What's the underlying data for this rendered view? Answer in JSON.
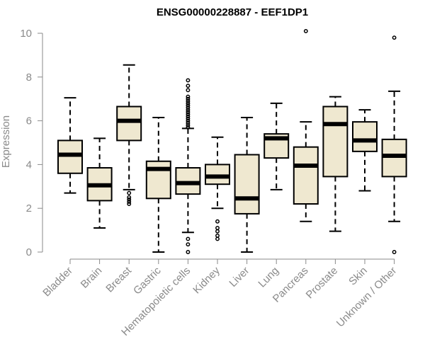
{
  "chart_data": {
    "type": "box",
    "title": "ENSG00000228887 - EEF1DP1",
    "xlabel": "",
    "ylabel": "Expression",
    "ylim": [
      0,
      10
    ],
    "yticks": [
      0,
      2,
      4,
      6,
      8,
      10
    ],
    "colors": {
      "box_fill": "#efe8d0",
      "box_stroke": "#000000",
      "axis": "#8a8a8a"
    },
    "categories": [
      "Bladder",
      "Brain",
      "Breast",
      "Gastric",
      "Hematopoietic cells",
      "Kidney",
      "Liver",
      "Lung",
      "Pancreas",
      "Prostate",
      "Skin",
      "Unknown / Other"
    ],
    "boxes": [
      {
        "category": "Bladder",
        "whisker_low": 2.7,
        "q1": 3.6,
        "median": 4.45,
        "q3": 5.1,
        "whisker_high": 7.05,
        "outliers": []
      },
      {
        "category": "Brain",
        "whisker_low": 1.1,
        "q1": 2.35,
        "median": 3.05,
        "q3": 3.85,
        "whisker_high": 5.2,
        "outliers": []
      },
      {
        "category": "Breast",
        "whisker_low": 2.85,
        "q1": 5.1,
        "median": 6.0,
        "q3": 6.65,
        "whisker_high": 8.55,
        "outliers": [
          2.2,
          2.3,
          2.4,
          2.5,
          2.7
        ]
      },
      {
        "category": "Gastric",
        "whisker_low": 0.0,
        "q1": 2.45,
        "median": 3.8,
        "q3": 4.15,
        "whisker_high": 6.15,
        "outliers": []
      },
      {
        "category": "Hematopoietic cells",
        "whisker_low": 0.9,
        "q1": 2.65,
        "median": 3.15,
        "q3": 3.85,
        "whisker_high": 5.65,
        "outliers": [
          0.0,
          0.35,
          0.6,
          5.7,
          5.8,
          5.9,
          6.0,
          6.1,
          6.2,
          6.3,
          6.4,
          6.5,
          6.6,
          6.7,
          6.8,
          6.9,
          7.0,
          7.1,
          7.4,
          7.6,
          7.85
        ]
      },
      {
        "category": "Kidney",
        "whisker_low": 2.0,
        "q1": 3.1,
        "median": 3.45,
        "q3": 4.0,
        "whisker_high": 5.25,
        "outliers": [
          0.6,
          0.75,
          0.95,
          1.1,
          1.4
        ]
      },
      {
        "category": "Liver",
        "whisker_low": 0.0,
        "q1": 1.75,
        "median": 2.45,
        "q3": 4.45,
        "whisker_high": 6.15,
        "outliers": []
      },
      {
        "category": "Lung",
        "whisker_low": 2.85,
        "q1": 4.3,
        "median": 5.2,
        "q3": 5.4,
        "whisker_high": 6.8,
        "outliers": []
      },
      {
        "category": "Pancreas",
        "whisker_low": 1.4,
        "q1": 2.2,
        "median": 3.95,
        "q3": 4.8,
        "whisker_high": 5.95,
        "outliers": [
          10.1
        ]
      },
      {
        "category": "Prostate",
        "whisker_low": 0.95,
        "q1": 3.45,
        "median": 5.85,
        "q3": 6.65,
        "whisker_high": 7.1,
        "outliers": []
      },
      {
        "category": "Skin",
        "whisker_low": 2.8,
        "q1": 4.6,
        "median": 5.1,
        "q3": 5.95,
        "whisker_high": 6.5,
        "outliers": []
      },
      {
        "category": "Unknown / Other",
        "whisker_low": 1.4,
        "q1": 3.45,
        "median": 4.4,
        "q3": 5.15,
        "whisker_high": 7.35,
        "outliers": [
          0.0,
          9.8
        ]
      }
    ]
  }
}
